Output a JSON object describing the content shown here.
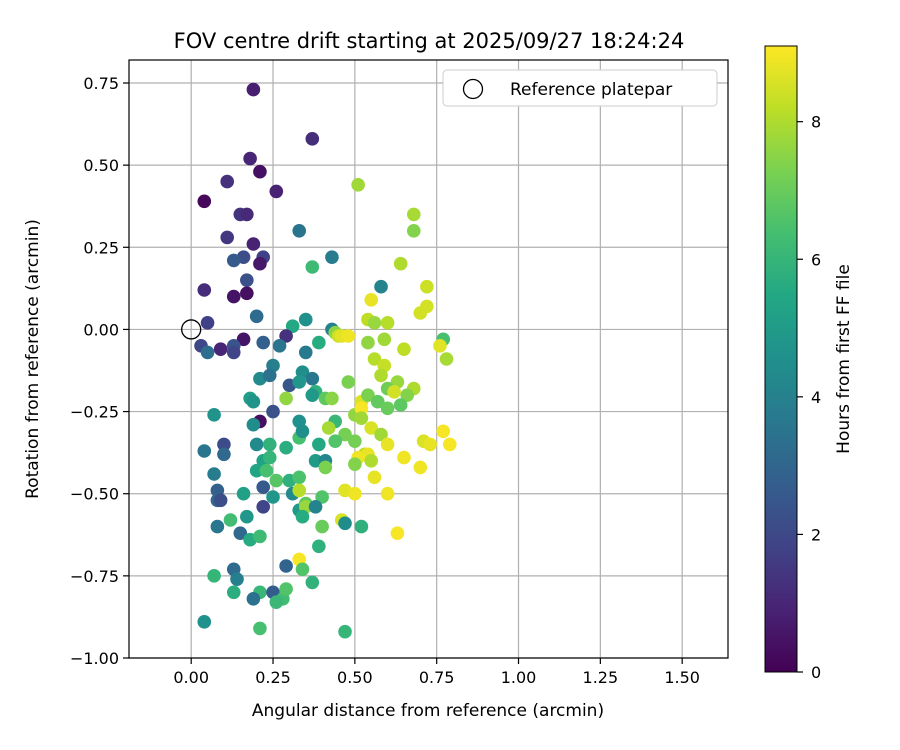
{
  "chart_data": {
    "type": "scatter",
    "title": "FOV centre drift starting at 2025/09/27 18:24:24",
    "xlabel": "Angular distance from reference (arcmin)",
    "ylabel": "Rotation from reference (arcmin)",
    "xlim": [
      -0.19,
      1.64
    ],
    "ylim": [
      -1.0,
      0.82
    ],
    "xticks": [
      0.0,
      0.25,
      0.5,
      0.75,
      1.0,
      1.25,
      1.5
    ],
    "xtick_labels": [
      "0.00",
      "0.25",
      "0.50",
      "0.75",
      "1.00",
      "1.25",
      "1.50"
    ],
    "yticks": [
      -1.0,
      -0.75,
      -0.5,
      -0.25,
      0.0,
      0.25,
      0.5,
      0.75
    ],
    "ytick_labels": [
      "−1.00",
      "−0.75",
      "−0.50",
      "−0.25",
      "0.00",
      "0.25",
      "0.50",
      "0.75"
    ],
    "grid": true,
    "legend": {
      "placement": "top-right",
      "label": "Reference platepar"
    },
    "reference_point": {
      "x": 0.0,
      "y": 0.0
    },
    "colorbar": {
      "label": "Hours from first FF file",
      "range": [
        0,
        9.1
      ],
      "ticks": [
        0,
        2,
        4,
        6,
        8
      ],
      "tick_labels": [
        "0",
        "2",
        "4",
        "6",
        "8"
      ],
      "colormap": "viridis"
    },
    "points": [
      {
        "x": 0.19,
        "y": 0.73,
        "h": 0.8
      },
      {
        "x": 0.37,
        "y": 0.58,
        "h": 1.2
      },
      {
        "x": 0.18,
        "y": 0.52,
        "h": 1.0
      },
      {
        "x": 0.21,
        "y": 0.48,
        "h": 0.4
      },
      {
        "x": 0.11,
        "y": 0.45,
        "h": 1.3
      },
      {
        "x": 0.26,
        "y": 0.42,
        "h": 0.9
      },
      {
        "x": 0.04,
        "y": 0.39,
        "h": 0.2
      },
      {
        "x": 0.15,
        "y": 0.35,
        "h": 1.4
      },
      {
        "x": 0.17,
        "y": 0.35,
        "h": 1.1
      },
      {
        "x": 0.33,
        "y": 0.3,
        "h": 3.5
      },
      {
        "x": 0.11,
        "y": 0.28,
        "h": 1.5
      },
      {
        "x": 0.19,
        "y": 0.26,
        "h": 0.9
      },
      {
        "x": 0.16,
        "y": 0.22,
        "h": 2.2
      },
      {
        "x": 0.22,
        "y": 0.22,
        "h": 1.8
      },
      {
        "x": 0.13,
        "y": 0.21,
        "h": 2.6
      },
      {
        "x": 0.21,
        "y": 0.2,
        "h": 0.6
      },
      {
        "x": 0.43,
        "y": 0.22,
        "h": 3.8
      },
      {
        "x": 0.37,
        "y": 0.19,
        "h": 6.2
      },
      {
        "x": 0.17,
        "y": 0.15,
        "h": 2.3
      },
      {
        "x": 0.04,
        "y": 0.12,
        "h": 1.2
      },
      {
        "x": 0.13,
        "y": 0.1,
        "h": 0.5
      },
      {
        "x": 0.17,
        "y": 0.11,
        "h": 0.4
      },
      {
        "x": 0.58,
        "y": 0.13,
        "h": 4.1
      },
      {
        "x": 0.2,
        "y": 0.04,
        "h": 3.2
      },
      {
        "x": 0.05,
        "y": 0.02,
        "h": 1.8
      },
      {
        "x": 0.31,
        "y": 0.01,
        "h": 5.5
      },
      {
        "x": 0.35,
        "y": 0.03,
        "h": 4.6
      },
      {
        "x": 0.43,
        "y": 0.0,
        "h": 4.0
      },
      {
        "x": 0.29,
        "y": -0.02,
        "h": 1.3
      },
      {
        "x": 0.16,
        "y": -0.03,
        "h": 0.5
      },
      {
        "x": 0.03,
        "y": -0.05,
        "h": 2.0
      },
      {
        "x": 0.05,
        "y": -0.07,
        "h": 3.3
      },
      {
        "x": 0.09,
        "y": -0.06,
        "h": 1.0
      },
      {
        "x": 0.13,
        "y": -0.05,
        "h": 2.4
      },
      {
        "x": 0.13,
        "y": -0.07,
        "h": 1.9
      },
      {
        "x": 0.22,
        "y": -0.04,
        "h": 2.8
      },
      {
        "x": 0.27,
        "y": -0.05,
        "h": 3.5
      },
      {
        "x": 0.35,
        "y": -0.07,
        "h": 3.7
      },
      {
        "x": 0.39,
        "y": -0.04,
        "h": 5.6
      },
      {
        "x": 0.44,
        "y": -0.01,
        "h": 7.5
      },
      {
        "x": 0.25,
        "y": -0.11,
        "h": 3.9
      },
      {
        "x": 0.34,
        "y": -0.13,
        "h": 4.5
      },
      {
        "x": 0.21,
        "y": -0.15,
        "h": 4.3
      },
      {
        "x": 0.24,
        "y": -0.14,
        "h": 3.4
      },
      {
        "x": 0.3,
        "y": -0.17,
        "h": 2.5
      },
      {
        "x": 0.37,
        "y": -0.15,
        "h": 3.6
      },
      {
        "x": 0.33,
        "y": -0.16,
        "h": 4.8
      },
      {
        "x": 0.38,
        "y": -0.19,
        "h": 5.8
      },
      {
        "x": 0.37,
        "y": -0.2,
        "h": 4.9
      },
      {
        "x": 0.18,
        "y": -0.21,
        "h": 5.1
      },
      {
        "x": 0.19,
        "y": -0.22,
        "h": 4.7
      },
      {
        "x": 0.29,
        "y": -0.21,
        "h": 7.6
      },
      {
        "x": 0.41,
        "y": -0.21,
        "h": 6.8
      },
      {
        "x": 0.21,
        "y": -0.28,
        "h": 0.4
      },
      {
        "x": 0.25,
        "y": -0.25,
        "h": 2.3
      },
      {
        "x": 0.07,
        "y": -0.26,
        "h": 4.7
      },
      {
        "x": 0.19,
        "y": -0.29,
        "h": 4.4
      },
      {
        "x": 0.33,
        "y": -0.28,
        "h": 4.6
      },
      {
        "x": 0.44,
        "y": -0.28,
        "h": 6.1
      },
      {
        "x": 0.47,
        "y": -0.32,
        "h": 7.2
      },
      {
        "x": 0.2,
        "y": -0.35,
        "h": 4.3
      },
      {
        "x": 0.24,
        "y": -0.35,
        "h": 5.9
      },
      {
        "x": 0.29,
        "y": -0.36,
        "h": 5.7
      },
      {
        "x": 0.33,
        "y": -0.33,
        "h": 6.4
      },
      {
        "x": 0.34,
        "y": -0.31,
        "h": 4.5
      },
      {
        "x": 0.39,
        "y": -0.35,
        "h": 5.5
      },
      {
        "x": 0.42,
        "y": -0.3,
        "h": 7.9
      },
      {
        "x": 0.44,
        "y": -0.34,
        "h": 6.6
      },
      {
        "x": 0.1,
        "y": -0.35,
        "h": 2.1
      },
      {
        "x": 0.1,
        "y": -0.38,
        "h": 3.1
      },
      {
        "x": 0.04,
        "y": -0.37,
        "h": 3.5
      },
      {
        "x": 0.22,
        "y": -0.4,
        "h": 5.3
      },
      {
        "x": 0.24,
        "y": -0.39,
        "h": 6.0
      },
      {
        "x": 0.38,
        "y": -0.4,
        "h": 5.0
      },
      {
        "x": 0.41,
        "y": -0.4,
        "h": 4.2
      },
      {
        "x": 0.41,
        "y": -0.42,
        "h": 7.3
      },
      {
        "x": 0.2,
        "y": -0.43,
        "h": 5.4
      },
      {
        "x": 0.23,
        "y": -0.43,
        "h": 6.4
      },
      {
        "x": 0.07,
        "y": -0.44,
        "h": 3.8
      },
      {
        "x": 0.22,
        "y": -0.48,
        "h": 2.6
      },
      {
        "x": 0.26,
        "y": -0.46,
        "h": 6.7
      },
      {
        "x": 0.3,
        "y": -0.46,
        "h": 5.8
      },
      {
        "x": 0.33,
        "y": -0.45,
        "h": 6.5
      },
      {
        "x": 0.08,
        "y": -0.49,
        "h": 2.8
      },
      {
        "x": 0.16,
        "y": -0.5,
        "h": 5.2
      },
      {
        "x": 0.31,
        "y": -0.5,
        "h": 4.3
      },
      {
        "x": 0.33,
        "y": -0.49,
        "h": 8.1
      },
      {
        "x": 0.4,
        "y": -0.51,
        "h": 6.6
      },
      {
        "x": 0.08,
        "y": -0.52,
        "h": 3.0
      },
      {
        "x": 0.09,
        "y": -0.52,
        "h": 2.2
      },
      {
        "x": 0.25,
        "y": -0.51,
        "h": 4.8
      },
      {
        "x": 0.22,
        "y": -0.54,
        "h": 1.9
      },
      {
        "x": 0.33,
        "y": -0.55,
        "h": 4.9
      },
      {
        "x": 0.35,
        "y": -0.53,
        "h": 6.8
      },
      {
        "x": 0.35,
        "y": -0.54,
        "h": 7.7
      },
      {
        "x": 0.34,
        "y": -0.57,
        "h": 5.6
      },
      {
        "x": 0.38,
        "y": -0.54,
        "h": 4.1
      },
      {
        "x": 0.12,
        "y": -0.58,
        "h": 6.3
      },
      {
        "x": 0.17,
        "y": -0.57,
        "h": 4.8
      },
      {
        "x": 0.08,
        "y": -0.6,
        "h": 3.6
      },
      {
        "x": 0.4,
        "y": -0.6,
        "h": 7.0
      },
      {
        "x": 0.46,
        "y": -0.58,
        "h": 8.6
      },
      {
        "x": 0.47,
        "y": -0.59,
        "h": 4.4
      },
      {
        "x": 0.52,
        "y": -0.6,
        "h": 5.8
      },
      {
        "x": 0.15,
        "y": -0.62,
        "h": 3.1
      },
      {
        "x": 0.18,
        "y": -0.64,
        "h": 5.6
      },
      {
        "x": 0.21,
        "y": -0.63,
        "h": 6.2
      },
      {
        "x": 0.39,
        "y": -0.66,
        "h": 5.8
      },
      {
        "x": 0.33,
        "y": -0.7,
        "h": 9.0
      },
      {
        "x": 0.13,
        "y": -0.73,
        "h": 3.2
      },
      {
        "x": 0.29,
        "y": -0.72,
        "h": 2.9
      },
      {
        "x": 0.34,
        "y": -0.73,
        "h": 6.6
      },
      {
        "x": 0.07,
        "y": -0.75,
        "h": 6.0
      },
      {
        "x": 0.14,
        "y": -0.76,
        "h": 3.9
      },
      {
        "x": 0.37,
        "y": -0.77,
        "h": 5.9
      },
      {
        "x": 0.13,
        "y": -0.8,
        "h": 5.7
      },
      {
        "x": 0.21,
        "y": -0.8,
        "h": 6.1
      },
      {
        "x": 0.25,
        "y": -0.8,
        "h": 2.7
      },
      {
        "x": 0.28,
        "y": -0.82,
        "h": 6.3
      },
      {
        "x": 0.29,
        "y": -0.79,
        "h": 6.6
      },
      {
        "x": 0.19,
        "y": -0.82,
        "h": 3.4
      },
      {
        "x": 0.26,
        "y": -0.83,
        "h": 6.1
      },
      {
        "x": 0.04,
        "y": -0.89,
        "h": 4.6
      },
      {
        "x": 0.21,
        "y": -0.91,
        "h": 6.4
      },
      {
        "x": 0.47,
        "y": -0.92,
        "h": 6.0
      },
      {
        "x": 0.51,
        "y": 0.44,
        "h": 7.8
      },
      {
        "x": 0.68,
        "y": 0.35,
        "h": 7.9
      },
      {
        "x": 0.68,
        "y": 0.3,
        "h": 7.4
      },
      {
        "x": 0.64,
        "y": 0.2,
        "h": 8.0
      },
      {
        "x": 0.72,
        "y": 0.13,
        "h": 8.4
      },
      {
        "x": 0.55,
        "y": 0.09,
        "h": 8.8
      },
      {
        "x": 0.72,
        "y": 0.07,
        "h": 8.5
      },
      {
        "x": 0.7,
        "y": 0.05,
        "h": 8.5
      },
      {
        "x": 0.54,
        "y": 0.03,
        "h": 8.2
      },
      {
        "x": 0.56,
        "y": 0.02,
        "h": 7.7
      },
      {
        "x": 0.6,
        "y": 0.02,
        "h": 8.1
      },
      {
        "x": 0.45,
        "y": -0.02,
        "h": 8.4
      },
      {
        "x": 0.46,
        "y": -0.02,
        "h": 8.7
      },
      {
        "x": 0.48,
        "y": -0.02,
        "h": 8.9
      },
      {
        "x": 0.54,
        "y": -0.04,
        "h": 7.6
      },
      {
        "x": 0.59,
        "y": -0.03,
        "h": 7.8
      },
      {
        "x": 0.77,
        "y": -0.03,
        "h": 6.4
      },
      {
        "x": 0.76,
        "y": -0.05,
        "h": 8.7
      },
      {
        "x": 0.65,
        "y": -0.06,
        "h": 8.2
      },
      {
        "x": 0.56,
        "y": -0.09,
        "h": 8.1
      },
      {
        "x": 0.59,
        "y": -0.11,
        "h": 8.3
      },
      {
        "x": 0.78,
        "y": -0.09,
        "h": 7.9
      },
      {
        "x": 0.58,
        "y": -0.14,
        "h": 8.0
      },
      {
        "x": 0.48,
        "y": -0.16,
        "h": 7.3
      },
      {
        "x": 0.63,
        "y": -0.16,
        "h": 7.7
      },
      {
        "x": 0.6,
        "y": -0.18,
        "h": 7.1
      },
      {
        "x": 0.68,
        "y": -0.18,
        "h": 8.0
      },
      {
        "x": 0.62,
        "y": -0.19,
        "h": 8.5
      },
      {
        "x": 0.66,
        "y": -0.2,
        "h": 7.4
      },
      {
        "x": 0.43,
        "y": -0.21,
        "h": 7.5
      },
      {
        "x": 0.52,
        "y": -0.22,
        "h": 8.6
      },
      {
        "x": 0.54,
        "y": -0.2,
        "h": 7.3
      },
      {
        "x": 0.57,
        "y": -0.22,
        "h": 6.9
      },
      {
        "x": 0.6,
        "y": -0.24,
        "h": 7.0
      },
      {
        "x": 0.64,
        "y": -0.23,
        "h": 6.8
      },
      {
        "x": 0.5,
        "y": -0.26,
        "h": 7.6
      },
      {
        "x": 0.52,
        "y": -0.24,
        "h": 9.0
      },
      {
        "x": 0.52,
        "y": -0.27,
        "h": 7.8
      },
      {
        "x": 0.55,
        "y": -0.3,
        "h": 8.6
      },
      {
        "x": 0.58,
        "y": -0.32,
        "h": 7.8
      },
      {
        "x": 0.6,
        "y": -0.35,
        "h": 8.8
      },
      {
        "x": 0.71,
        "y": -0.34,
        "h": 8.6
      },
      {
        "x": 0.73,
        "y": -0.35,
        "h": 8.8
      },
      {
        "x": 0.77,
        "y": -0.31,
        "h": 9.0
      },
      {
        "x": 0.79,
        "y": -0.35,
        "h": 9.0
      },
      {
        "x": 0.5,
        "y": -0.34,
        "h": 7.2
      },
      {
        "x": 0.53,
        "y": -0.38,
        "h": 8.2
      },
      {
        "x": 0.54,
        "y": -0.38,
        "h": 8.8
      },
      {
        "x": 0.51,
        "y": -0.39,
        "h": 8.9
      },
      {
        "x": 0.55,
        "y": -0.4,
        "h": 8.0
      },
      {
        "x": 0.5,
        "y": -0.41,
        "h": 7.4
      },
      {
        "x": 0.65,
        "y": -0.39,
        "h": 8.9
      },
      {
        "x": 0.7,
        "y": -0.42,
        "h": 8.9
      },
      {
        "x": 0.56,
        "y": -0.45,
        "h": 8.8
      },
      {
        "x": 0.47,
        "y": -0.49,
        "h": 8.7
      },
      {
        "x": 0.5,
        "y": -0.5,
        "h": 8.9
      },
      {
        "x": 0.6,
        "y": -0.5,
        "h": 8.9
      },
      {
        "x": 0.63,
        "y": -0.62,
        "h": 9.0
      }
    ]
  }
}
